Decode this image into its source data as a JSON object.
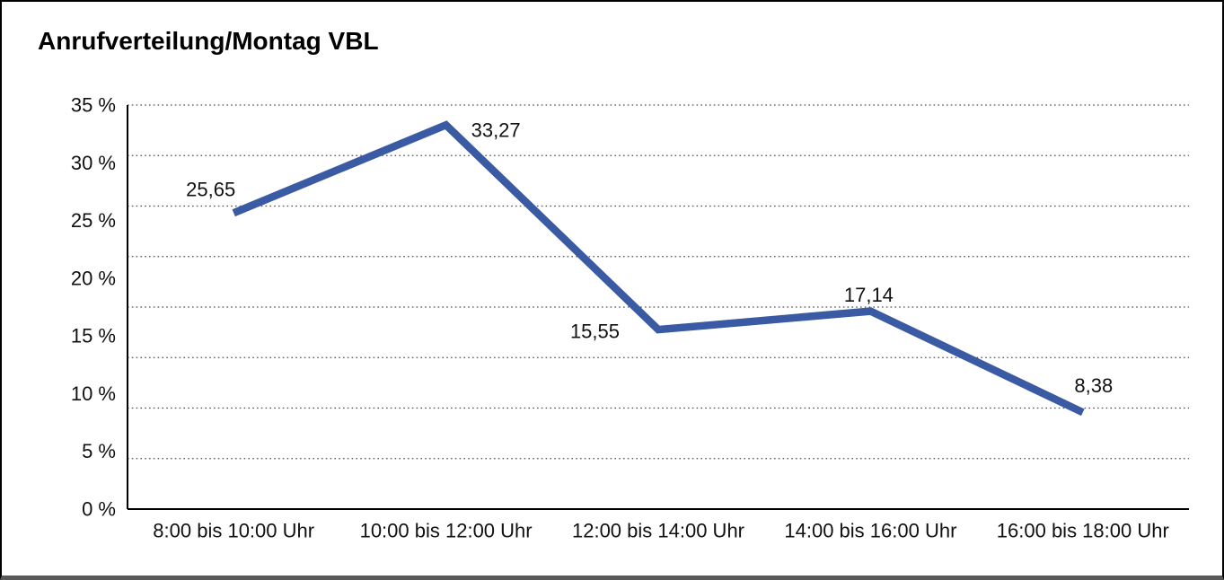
{
  "window": {
    "background": "#ffffff",
    "frame_border_color": "#000000",
    "bottom_bar_color": "#595959"
  },
  "title": "Anrufverteilung/Montag VBL",
  "chart_data": {
    "type": "line",
    "title": "Anrufverteilung/Montag VBL",
    "categories": [
      "8:00 bis 10:00 Uhr",
      "10:00 bis 12:00 Uhr",
      "12:00 bis 14:00 Uhr",
      "14:00 bis 16:00 Uhr",
      "16:00 bis 18:00 Uhr"
    ],
    "values": [
      25.65,
      33.27,
      15.55,
      17.14,
      8.38
    ],
    "value_labels": [
      "25,65",
      "33,27",
      "15,55",
      "17,14",
      "8,38"
    ],
    "xlabel": "",
    "ylabel": "",
    "ylim": [
      0,
      35
    ],
    "ytick_step": 5,
    "ytick_labels": [
      "35 %",
      "30 %",
      "25 %",
      "20 %",
      "15 %",
      "10 %",
      "5 %",
      "0 %"
    ],
    "grid": "horizontal-dotted",
    "grid_extra_line": true,
    "legend": "none",
    "line_color": "#3a5aa3",
    "axis_color": "#000000",
    "gridline_color": "#4d4d4d",
    "text_color": "#111111"
  }
}
